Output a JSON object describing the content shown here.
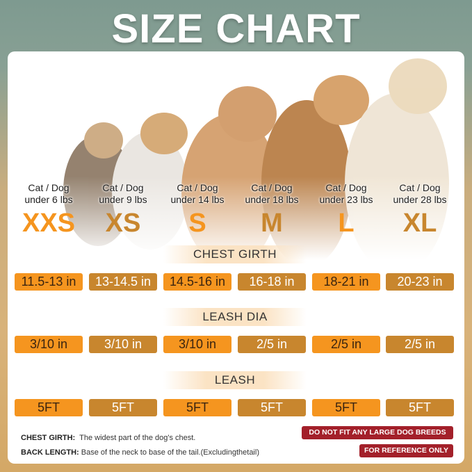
{
  "title": "SIZE CHART",
  "colors": {
    "orange": "#f5951f",
    "gold": "#c8862e",
    "warning": "#a3202a"
  },
  "sizes": [
    {
      "label": "XXS",
      "weight_line1": "Cat / Dog",
      "weight_line2": "under 6 lbs",
      "chest": "11.5-13 in",
      "leash_dia": "3/10 in",
      "leash": "5FT",
      "style": "orange"
    },
    {
      "label": "XS",
      "weight_line1": "Cat / Dog",
      "weight_line2": "under 9 lbs",
      "chest": "13-14.5 in",
      "leash_dia": "3/10 in",
      "leash": "5FT",
      "style": "gold"
    },
    {
      "label": "S",
      "weight_line1": "Cat / Dog",
      "weight_line2": "under 14 lbs",
      "chest": "14.5-16 in",
      "leash_dia": "3/10 in",
      "leash": "5FT",
      "style": "orange"
    },
    {
      "label": "M",
      "weight_line1": "Cat / Dog",
      "weight_line2": "under 18 lbs",
      "chest": "16-18 in",
      "leash_dia": "2/5 in",
      "leash": "5FT",
      "style": "gold"
    },
    {
      "label": "L",
      "weight_line1": "Cat / Dog",
      "weight_line2": "under 23 lbs",
      "chest": "18-21 in",
      "leash_dia": "2/5 in",
      "leash": "5FT",
      "style": "orange"
    },
    {
      "label": "XL",
      "weight_line1": "Cat / Dog",
      "weight_line2": "under 28 lbs",
      "chest": "20-23 in",
      "leash_dia": "2/5 in",
      "leash": "5FT",
      "style": "gold"
    }
  ],
  "sections": {
    "chest": "CHEST GIRTH",
    "leash_dia": "LEASH DIA",
    "leash": "LEASH"
  },
  "notes": [
    {
      "term": "CHEST GIRTH:",
      "desc": "The widest part of the dog's chest."
    },
    {
      "term": "BACK LENGTH:",
      "desc": "Base of the neck to base of the tail.(Excludingthetail)"
    }
  ],
  "warnings": [
    "DO NOT FIT ANY LARGE DOG BREEDS",
    "FOR REFERENCE ONLY"
  ]
}
